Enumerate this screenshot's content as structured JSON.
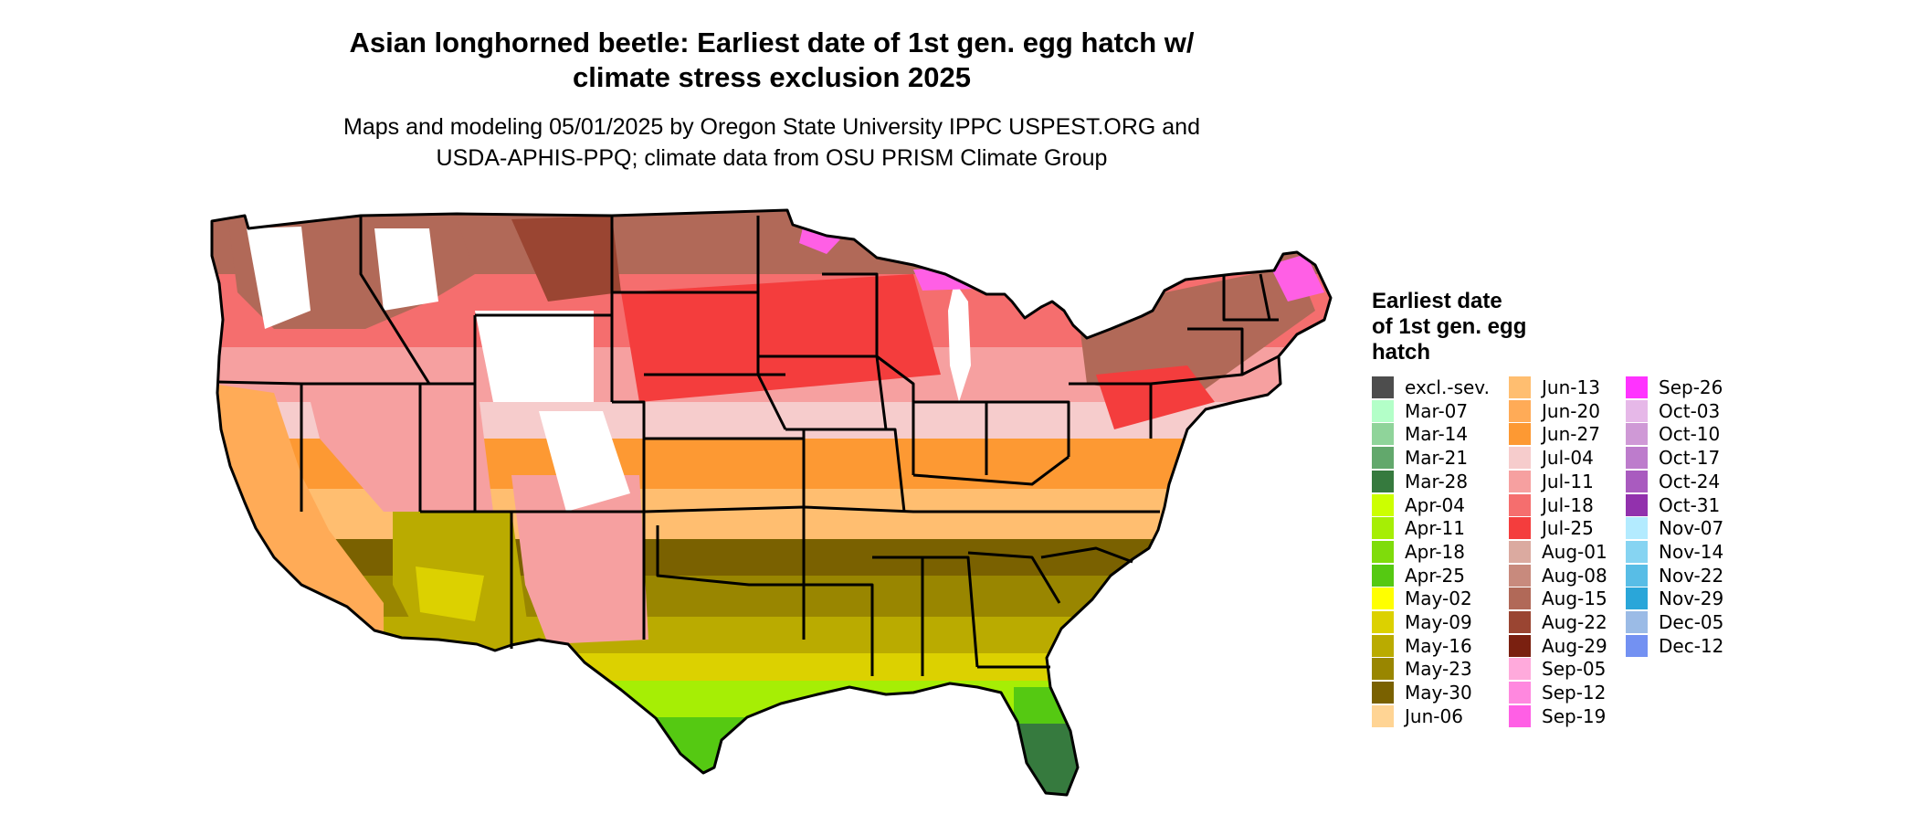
{
  "title_line1": "Asian longhorned beetle: Earliest date of 1st gen. egg hatch w/",
  "title_line2": "climate stress exclusion 2025",
  "subtitle_line1": "Maps and modeling 05/01/2025 by Oregon State University IPPC USPEST.ORG and",
  "subtitle_line2": "USDA-APHIS-PPQ; climate data from OSU PRISM Climate Group",
  "legend": {
    "title_lines": [
      "Earliest date",
      "of 1st gen. egg",
      "hatch"
    ],
    "items": [
      {
        "label": "excl.-sev.",
        "color": "#4d4d4d"
      },
      {
        "label": "Mar-07",
        "color": "#b3ffc8"
      },
      {
        "label": "Mar-14",
        "color": "#8fd49a"
      },
      {
        "label": "Mar-21",
        "color": "#62a86c"
      },
      {
        "label": "Mar-28",
        "color": "#367a3e"
      },
      {
        "label": "Apr-04",
        "color": "#ccff00"
      },
      {
        "label": "Apr-11",
        "color": "#a6ee05"
      },
      {
        "label": "Apr-18",
        "color": "#7fdc0b"
      },
      {
        "label": "Apr-25",
        "color": "#55c912"
      },
      {
        "label": "May-02",
        "color": "#ffff00"
      },
      {
        "label": "May-09",
        "color": "#dcd100"
      },
      {
        "label": "May-16",
        "color": "#baab00"
      },
      {
        "label": "May-23",
        "color": "#998600"
      },
      {
        "label": "May-30",
        "color": "#7a6100"
      },
      {
        "label": "Jun-06",
        "color": "#ffd494"
      },
      {
        "label": "Jun-13",
        "color": "#ffbe70"
      },
      {
        "label": "Jun-20",
        "color": "#ffab57"
      },
      {
        "label": "Jun-27",
        "color": "#fd9933"
      },
      {
        "label": "Jul-04",
        "color": "#f6cccc"
      },
      {
        "label": "Jul-11",
        "color": "#f6a0a0"
      },
      {
        "label": "Jul-18",
        "color": "#f56e6e"
      },
      {
        "label": "Jul-25",
        "color": "#f43d3d"
      },
      {
        "label": "Aug-01",
        "color": "#dbaaa0"
      },
      {
        "label": "Aug-08",
        "color": "#c88a7d"
      },
      {
        "label": "Aug-15",
        "color": "#b16958"
      },
      {
        "label": "Aug-22",
        "color": "#9a4532"
      },
      {
        "label": "Aug-29",
        "color": "#7a2010"
      },
      {
        "label": "Sep-05",
        "color": "#ffaadc"
      },
      {
        "label": "Sep-12",
        "color": "#ff88df"
      },
      {
        "label": "Sep-19",
        "color": "#ff5fe5"
      },
      {
        "label": "Sep-26",
        "color": "#ff33ff"
      },
      {
        "label": "Oct-03",
        "color": "#e6b8e8"
      },
      {
        "label": "Oct-10",
        "color": "#cf99d6"
      },
      {
        "label": "Oct-17",
        "color": "#bd7ccc"
      },
      {
        "label": "Oct-24",
        "color": "#a95bbf"
      },
      {
        "label": "Oct-31",
        "color": "#9231ad"
      },
      {
        "label": "Nov-07",
        "color": "#b3ebff"
      },
      {
        "label": "Nov-14",
        "color": "#86d4f2"
      },
      {
        "label": "Nov-22",
        "color": "#58bde6"
      },
      {
        "label": "Nov-29",
        "color": "#2aa6d9"
      },
      {
        "label": "Dec-05",
        "color": "#9bbbe6"
      },
      {
        "label": "Dec-12",
        "color": "#7391f2"
      }
    ]
  }
}
